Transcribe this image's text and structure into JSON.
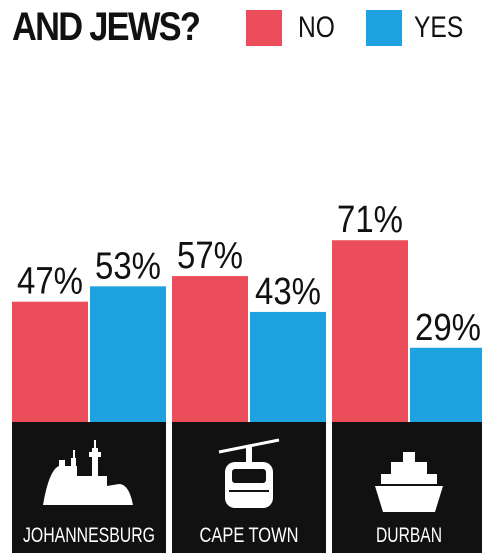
{
  "header": {
    "title": "AND JEWS?",
    "legend": [
      {
        "label": "NO",
        "color": "#ec4d5b"
      },
      {
        "label": "YES",
        "color": "#1fa3e0"
      }
    ]
  },
  "chart_data": {
    "type": "bar",
    "title": "AND JEWS?",
    "categories": [
      "JOHANNESBURG",
      "CAPE TOWN",
      "DURBAN"
    ],
    "category_icons": [
      "johannesburg-skyline-icon",
      "cable-car-icon",
      "ship-icon"
    ],
    "series": [
      {
        "name": "NO",
        "color": "#ec4d5b",
        "values": [
          47,
          57,
          71
        ],
        "labels": [
          "47%",
          "57%",
          "71%"
        ]
      },
      {
        "name": "YES",
        "color": "#1fa3e0",
        "values": [
          53,
          43,
          29
        ],
        "labels": [
          "53%",
          "43%",
          "29%"
        ]
      }
    ],
    "ylim": [
      0,
      100
    ],
    "grid": false,
    "legend_position": "top"
  }
}
